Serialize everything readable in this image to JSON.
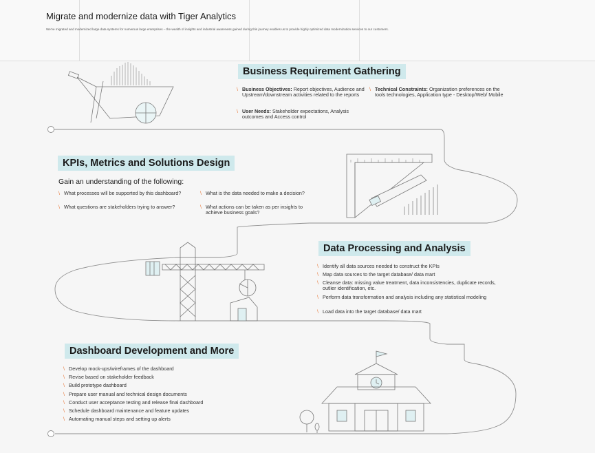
{
  "header": {
    "title": "Migrate and modernize data with Tiger Analytics",
    "subtitle": "We've migrated and modernized large data systems for numerous large enterprises – the wealth of insights and industrial awareness gained during this journey enables us to provide highly optimized data modernization services to our customers."
  },
  "sections": {
    "business": {
      "title": "Business Requirement Gathering",
      "objectives_label": "Business Objectives:",
      "objectives_text": " Report objectives, Audience and Upstream/downstream activities related to the reports",
      "user_label": "User Needs:",
      "user_text": " Stakeholder expectations, Analysis outcomes and Access control",
      "tech_label": "Technical Constraints:",
      "tech_text": " Organization preferences on the tools technologies, Application type - Desktop/Web/ Mobile"
    },
    "kpis": {
      "title": "KPIs, Metrics and Solutions Design",
      "intro": "Gain an understanding of the following:",
      "q1": "What processes will be supported by this dashboard?",
      "q2": "What questions are stakeholders trying to answer?",
      "q3": "What is the data needed to make a decision?",
      "q4": "What actions can be taken as per insights to achieve business goals?"
    },
    "processing": {
      "title": "Data Processing and Analysis",
      "items": [
        "Identify all data sources needed to construct the KPIs",
        "Map data sources to the target database/ data mart",
        "Cleanse data: missing value treatment, data inconsistencies, duplicate records, outlier identification, etc.",
        "Perform data transformation and analysis including any statistical modeling",
        "Load data into the target database/ data mart"
      ]
    },
    "dashboard": {
      "title": "Dashboard Development and More",
      "items": [
        "Develop mock-ups/wireframes of the dashboard",
        "Revise based on stakeholder feedback",
        "Build prototype dashboard",
        "Prepare user manual and technical design documents",
        "Conduct user acceptance testing and release final dashboard",
        "Schedule dashboard maintenance and feature updates",
        "Automating manual steps and setting up alerts"
      ]
    }
  },
  "colors": {
    "accent": "#cfe9ec",
    "bullet": "#e8783a",
    "line": "#9a9a9a"
  },
  "icons": [
    "wheelbarrow-icon",
    "ruler-pencil-icon",
    "crane-icon",
    "school-building-icon",
    "tree-icon"
  ]
}
